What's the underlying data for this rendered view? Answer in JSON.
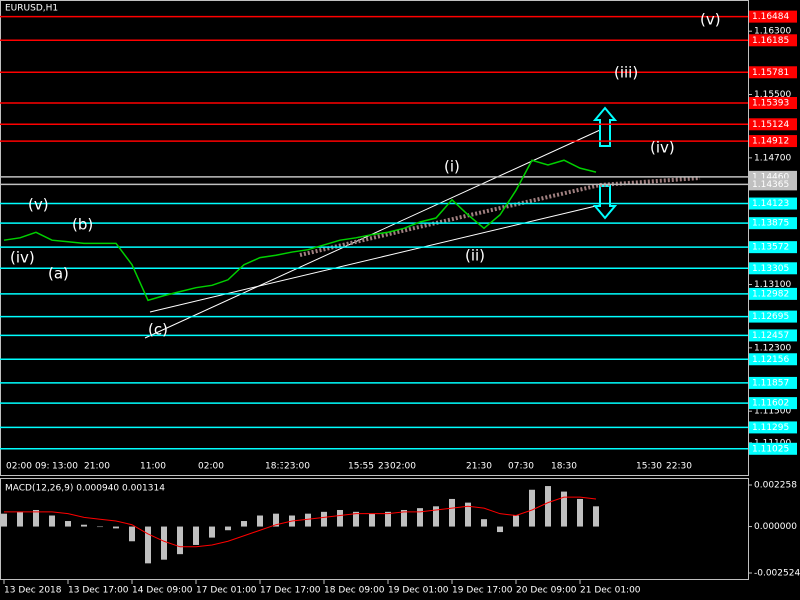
{
  "chart_data": [
    {
      "type": "line",
      "title": "EURUSD,H1",
      "color": "#00d000",
      "categories": [
        "13 Dec 2018",
        null,
        null,
        null,
        "13 Dec 17:00",
        null,
        null,
        null,
        "14 Dec 09:00",
        null,
        null,
        null,
        "17 Dec 01:00",
        null,
        null,
        null,
        "17 Dec 17:00",
        null,
        null,
        null,
        "18 Dec 09:00",
        null,
        null,
        null,
        "19 Dec 01:00",
        null,
        null,
        null,
        "19 Dec 17:00",
        null,
        null,
        null,
        "20 Dec 09:00",
        null,
        null,
        null,
        "21 Dec 01:00",
        null
      ],
      "values": [
        1.1366,
        1.1369,
        1.1376,
        1.1366,
        1.1364,
        1.1362,
        1.1362,
        1.1362,
        1.1335,
        1.129,
        1.1296,
        1.1301,
        1.1306,
        1.1309,
        1.1316,
        1.1335,
        1.1344,
        1.1347,
        1.1351,
        1.1354,
        1.136,
        1.1366,
        1.1369,
        1.1373,
        1.1376,
        1.1381,
        1.1389,
        1.1394,
        1.1417,
        1.1398,
        1.1381,
        1.1398,
        1.1429,
        1.1467,
        1.1461,
        1.1467,
        1.1457,
        1.1452
      ],
      "ylim": [
        1.10694,
        1.16694
      ],
      "yticks": [
        {
          "value": 1.163,
          "label": "1.16300"
        },
        {
          "value": 1.155,
          "label": "1.15500"
        },
        {
          "value": 1.147,
          "label": "1.14700"
        },
        {
          "value": 1.131,
          "label": "1.13100"
        },
        {
          "value": 1.123,
          "label": "1.12300"
        },
        {
          "value": 1.115,
          "label": "1.11500"
        },
        {
          "value": 1.111,
          "label": "1.11100"
        }
      ],
      "levels": [
        {
          "value": 1.16484,
          "color": "#ff0000"
        },
        {
          "value": 1.16185,
          "color": "#ff0000"
        },
        {
          "value": 1.15781,
          "color": "#ff0000"
        },
        {
          "value": 1.15393,
          "color": "#ff0000"
        },
        {
          "value": 1.15124,
          "color": "#ff0000"
        },
        {
          "value": 1.14912,
          "color": "#ff0000"
        },
        {
          "value": 1.1446,
          "label": "1.14460",
          "color": "#c0c0c0"
        },
        {
          "value": 1.14365,
          "color": "#c0c0c0"
        },
        {
          "value": 1.14123,
          "color": "#00ffff"
        },
        {
          "value": 1.13875,
          "color": "#00ffff"
        },
        {
          "value": 1.13572,
          "color": "#00ffff"
        },
        {
          "value": 1.13305,
          "color": "#00ffff"
        },
        {
          "value": 1.12982,
          "color": "#00ffff"
        },
        {
          "value": 1.12695,
          "color": "#00ffff"
        },
        {
          "value": 1.12457,
          "color": "#00ffff"
        },
        {
          "value": 1.12156,
          "color": "#00ffff"
        },
        {
          "value": 1.11857,
          "color": "#00ffff"
        },
        {
          "value": 1.11602,
          "color": "#00ffff"
        },
        {
          "value": 1.11295,
          "color": "#00ffff"
        },
        {
          "value": 1.11025,
          "color": "#00ffff"
        }
      ],
      "annotations": [
        {
          "text": "(v)",
          "color": "#ffffff"
        },
        {
          "text": "(iii)",
          "color": "#ffffff"
        },
        {
          "text": "(iv)",
          "color": "#ffffff"
        },
        {
          "text": "(v)",
          "color": "#ffffff"
        },
        {
          "text": "(b)",
          "color": "#ffff80"
        },
        {
          "text": "(iv)",
          "color": "#ffffff"
        },
        {
          "text": "(a)",
          "color": "#ffff80"
        },
        {
          "text": "(c)",
          "color": "#ffff80"
        },
        {
          "text": "(i)",
          "color": "#ffffff"
        },
        {
          "text": "(ii)",
          "color": "#ffffff"
        }
      ],
      "time_marks": [
        "02:00",
        "09:",
        "13:00",
        "21:00",
        "11:00",
        "02:00",
        "18:3",
        "23:00",
        "15:55",
        "23",
        "02:00",
        "21:30",
        "07:30",
        "18:30",
        "15:30",
        "22:30"
      ]
    },
    {
      "type": "bar",
      "title": "MACD(12,26,9) 0.000940 0.001314",
      "color": "#c0c0c0",
      "signal_color": "#ff0000",
      "values": [
        0.0007,
        0.0008,
        0.0009,
        0.0006,
        0.0003,
        0.0001,
        0.0,
        -0.0001,
        -0.0008,
        -0.002,
        -0.0018,
        -0.0015,
        -0.001,
        -0.0006,
        -0.0002,
        0.0003,
        0.0006,
        0.0007,
        0.0006,
        0.0007,
        0.0008,
        0.0009,
        0.0008,
        0.0007,
        0.0008,
        0.0009,
        0.001,
        0.0011,
        0.0015,
        0.0013,
        0.0004,
        -0.0003,
        0.0006,
        0.002,
        0.0022,
        0.0019,
        0.0015,
        0.0011
      ],
      "signal": [
        0.0008,
        0.0008,
        0.0008,
        0.0008,
        0.0007,
        0.0005,
        0.0004,
        0.0003,
        0.0001,
        -0.0004,
        -0.0008,
        -0.0011,
        -0.0011,
        -0.001,
        -0.0008,
        -0.0005,
        -0.0002,
        0.0001,
        0.0003,
        0.0004,
        0.0005,
        0.0006,
        0.0007,
        0.0007,
        0.0007,
        0.0008,
        0.0008,
        0.0009,
        0.001,
        0.0011,
        0.001,
        0.0007,
        0.0006,
        0.0009,
        0.0013,
        0.0016,
        0.0016,
        0.0015
      ],
      "ylim": [
        -0.002524,
        0.002258
      ],
      "yticks": [
        0.002258,
        {
          "value": 0,
          "label": "0.000000"
        },
        -0.002524
      ]
    }
  ]
}
